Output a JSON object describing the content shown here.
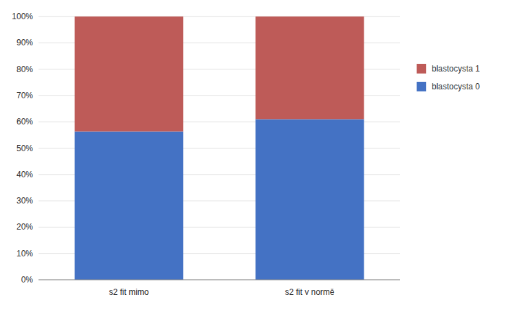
{
  "chart_data": {
    "type": "bar",
    "stacked": true,
    "categories": [
      "s2 fit mimo",
      "s2 fit v normě"
    ],
    "series": [
      {
        "name": "blastocysta 0",
        "color": "#4472C4",
        "values": [
          0.563,
          0.61
        ]
      },
      {
        "name": "blastocysta 1",
        "color": "#BE5B58",
        "values": [
          0.437,
          0.39
        ]
      }
    ],
    "ylim": [
      0,
      1.0
    ],
    "yticks": [
      {
        "value": 0.0,
        "label": "0%"
      },
      {
        "value": 0.1,
        "label": "10%"
      },
      {
        "value": 0.2,
        "label": "20%"
      },
      {
        "value": 0.3,
        "label": "30%"
      },
      {
        "value": 0.4,
        "label": "40%"
      },
      {
        "value": 0.5,
        "label": "50%"
      },
      {
        "value": 0.6,
        "label": "60%"
      },
      {
        "value": 0.7,
        "label": "70%"
      },
      {
        "value": 0.8,
        "label": "80%"
      },
      {
        "value": 0.9,
        "label": "90%"
      },
      {
        "value": 1.0,
        "label": "100%"
      }
    ],
    "grid": true,
    "legend": "right"
  }
}
